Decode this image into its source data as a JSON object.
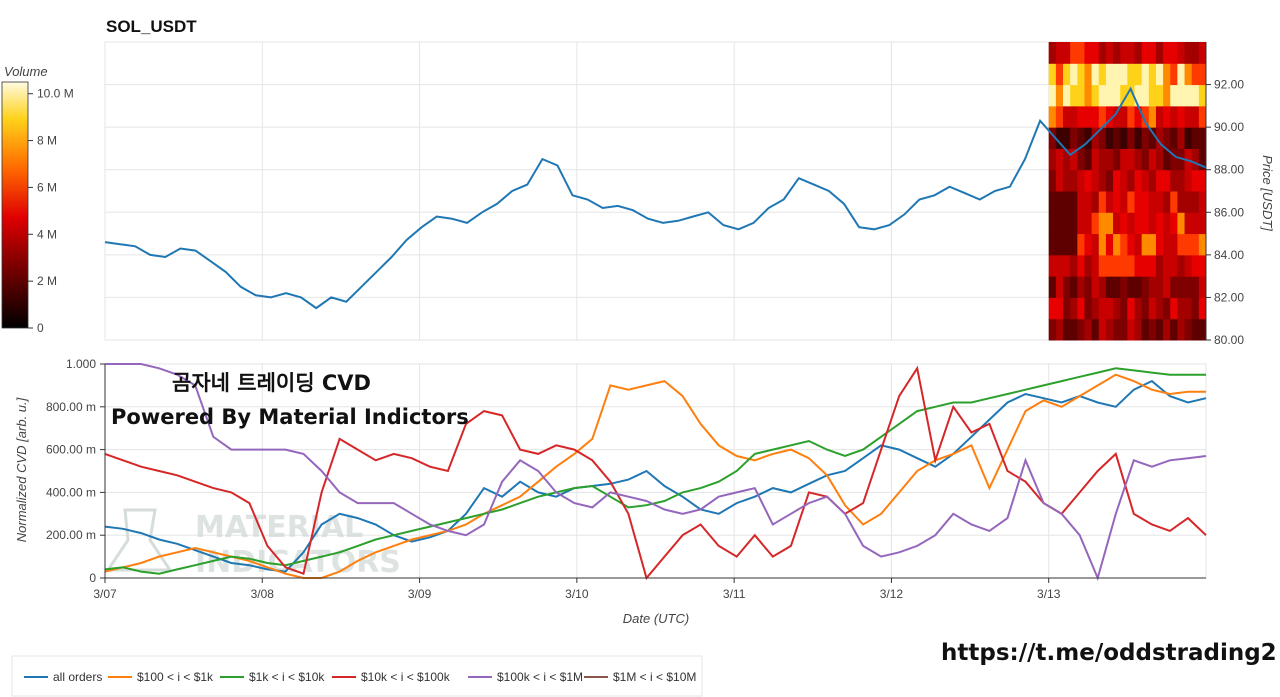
{
  "title": "SOL_USDT",
  "overlay_text": {
    "line1": "곰자네 트레이딩 CVD",
    "line2": "Powered By Material Indictors"
  },
  "watermark": [
    "MATERIAL",
    "INDICATORS"
  ],
  "footer_link": "https://t.me/oddstrading2",
  "colors": {
    "all": "#1f77b4",
    "s100_1k": "#ff7f0e",
    "s1k_10k": "#2ca02c",
    "s10k_100k": "#d62728",
    "s100k_1m": "#9467bd",
    "s1m_10m": "#8c564b"
  },
  "chart_data": [
    {
      "type": "line",
      "title": "SOL_USDT",
      "ylabel": "Price [USDT]",
      "ylim": [
        80,
        94
      ],
      "yticks": [
        "80.00",
        "82.00",
        "84.00",
        "86.00",
        "88.00",
        "90.00",
        "92.00"
      ],
      "xlim": [
        0,
        7
      ],
      "price": [
        84.6,
        84.5,
        84.4,
        84.0,
        83.9,
        84.3,
        84.2,
        83.7,
        83.2,
        82.5,
        82.1,
        82.0,
        82.2,
        82.0,
        81.5,
        82.0,
        81.8,
        82.5,
        83.2,
        83.9,
        84.7,
        85.3,
        85.8,
        85.7,
        85.5,
        86.0,
        86.4,
        87.0,
        87.3,
        88.5,
        88.2,
        86.8,
        86.6,
        86.2,
        86.3,
        86.1,
        85.7,
        85.5,
        85.6,
        85.8,
        86.0,
        85.4,
        85.2,
        85.5,
        86.2,
        86.6,
        87.6,
        87.3,
        87.0,
        86.4,
        85.3,
        85.2,
        85.4,
        85.9,
        86.6,
        86.8,
        87.2,
        86.9,
        86.6,
        87.0,
        87.2,
        88.5,
        90.3,
        89.5,
        88.7,
        89.2,
        89.9,
        90.6,
        91.8,
        90.2,
        89.2,
        88.6,
        88.4,
        88.1
      ],
      "heatmap": {
        "label": "Volume",
        "ticks": [
          "0",
          "2 M",
          "4 M",
          "6 M",
          "8 M",
          "10.0 M"
        ],
        "max": 10.5
      }
    },
    {
      "type": "line",
      "ylabel": "Normalized CVD [arb. u.]",
      "xlabel": "Date (UTC)",
      "ylim": [
        0,
        1
      ],
      "yticks": [
        "0",
        "200.00 m",
        "400.00 m",
        "600.00 m",
        "800.00 m",
        "1.000"
      ],
      "xlim": [
        0,
        7
      ],
      "xticks": [
        "3/07",
        "3/08",
        "3/09",
        "3/10",
        "3/11",
        "3/12",
        "3/13"
      ],
      "series": [
        {
          "name": "all orders",
          "key": "all",
          "values": [
            0.24,
            0.23,
            0.21,
            0.18,
            0.16,
            0.13,
            0.1,
            0.07,
            0.06,
            0.04,
            0.03,
            0.12,
            0.25,
            0.3,
            0.28,
            0.25,
            0.2,
            0.17,
            0.19,
            0.22,
            0.3,
            0.42,
            0.38,
            0.45,
            0.4,
            0.38,
            0.42,
            0.43,
            0.44,
            0.46,
            0.5,
            0.43,
            0.38,
            0.32,
            0.3,
            0.35,
            0.38,
            0.42,
            0.4,
            0.44,
            0.48,
            0.5,
            0.56,
            0.62,
            0.6,
            0.56,
            0.52,
            0.58,
            0.66,
            0.74,
            0.82,
            0.86,
            0.84,
            0.82,
            0.85,
            0.82,
            0.8,
            0.88,
            0.92,
            0.85,
            0.82,
            0.84
          ]
        },
        {
          "name": "$100 < i < $1k",
          "key": "s100_1k",
          "values": [
            0.03,
            0.05,
            0.07,
            0.1,
            0.12,
            0.14,
            0.12,
            0.1,
            0.08,
            0.05,
            0.02,
            0.0,
            0.0,
            0.03,
            0.08,
            0.12,
            0.15,
            0.18,
            0.2,
            0.22,
            0.25,
            0.3,
            0.34,
            0.38,
            0.45,
            0.52,
            0.58,
            0.65,
            0.9,
            0.88,
            0.9,
            0.92,
            0.85,
            0.72,
            0.62,
            0.57,
            0.55,
            0.58,
            0.6,
            0.56,
            0.48,
            0.34,
            0.25,
            0.3,
            0.4,
            0.5,
            0.55,
            0.58,
            0.62,
            0.42,
            0.6,
            0.78,
            0.83,
            0.8,
            0.85,
            0.9,
            0.95,
            0.92,
            0.88,
            0.86,
            0.87,
            0.87
          ]
        },
        {
          "name": "$1k < i < $10k",
          "key": "s1k_10k",
          "values": [
            0.04,
            0.05,
            0.03,
            0.02,
            0.04,
            0.06,
            0.08,
            0.1,
            0.09,
            0.07,
            0.06,
            0.08,
            0.1,
            0.12,
            0.15,
            0.18,
            0.2,
            0.22,
            0.24,
            0.26,
            0.28,
            0.3,
            0.32,
            0.35,
            0.38,
            0.4,
            0.42,
            0.43,
            0.38,
            0.33,
            0.34,
            0.36,
            0.4,
            0.42,
            0.45,
            0.5,
            0.58,
            0.6,
            0.62,
            0.64,
            0.6,
            0.57,
            0.6,
            0.66,
            0.72,
            0.78,
            0.8,
            0.82,
            0.82,
            0.84,
            0.86,
            0.88,
            0.9,
            0.92,
            0.94,
            0.96,
            0.98,
            0.97,
            0.96,
            0.95,
            0.95,
            0.95
          ]
        },
        {
          "name": "$10k < i < $100k",
          "key": "s10k_100k",
          "values": [
            0.58,
            0.55,
            0.52,
            0.5,
            0.48,
            0.45,
            0.42,
            0.4,
            0.35,
            0.15,
            0.05,
            0.02,
            0.4,
            0.65,
            0.6,
            0.55,
            0.58,
            0.56,
            0.52,
            0.5,
            0.72,
            0.78,
            0.76,
            0.6,
            0.58,
            0.62,
            0.6,
            0.55,
            0.45,
            0.3,
            0.0,
            0.1,
            0.2,
            0.25,
            0.15,
            0.1,
            0.2,
            0.1,
            0.15,
            0.4,
            0.38,
            0.3,
            0.35,
            0.6,
            0.85,
            0.98,
            0.55,
            0.8,
            0.68,
            0.72,
            0.5,
            0.45,
            0.35,
            0.3,
            0.4,
            0.5,
            0.58,
            0.3,
            0.25,
            0.22,
            0.28,
            0.2
          ]
        },
        {
          "name": "$100k < i < $1M",
          "key": "s100k_1m",
          "values": [
            1.0,
            1.0,
            1.0,
            0.98,
            0.95,
            0.9,
            0.66,
            0.6,
            0.6,
            0.6,
            0.6,
            0.58,
            0.5,
            0.4,
            0.35,
            0.35,
            0.35,
            0.3,
            0.25,
            0.22,
            0.2,
            0.25,
            0.45,
            0.55,
            0.5,
            0.4,
            0.35,
            0.33,
            0.4,
            0.38,
            0.36,
            0.32,
            0.3,
            0.32,
            0.38,
            0.4,
            0.42,
            0.25,
            0.3,
            0.35,
            0.38,
            0.3,
            0.15,
            0.1,
            0.12,
            0.15,
            0.2,
            0.3,
            0.25,
            0.22,
            0.28,
            0.55,
            0.35,
            0.3,
            0.2,
            0.0,
            0.3,
            0.55,
            0.52,
            0.55,
            0.56,
            0.57
          ]
        },
        {
          "name": "$1M < i < $10M",
          "key": "s1m_10m",
          "values": []
        }
      ]
    }
  ]
}
